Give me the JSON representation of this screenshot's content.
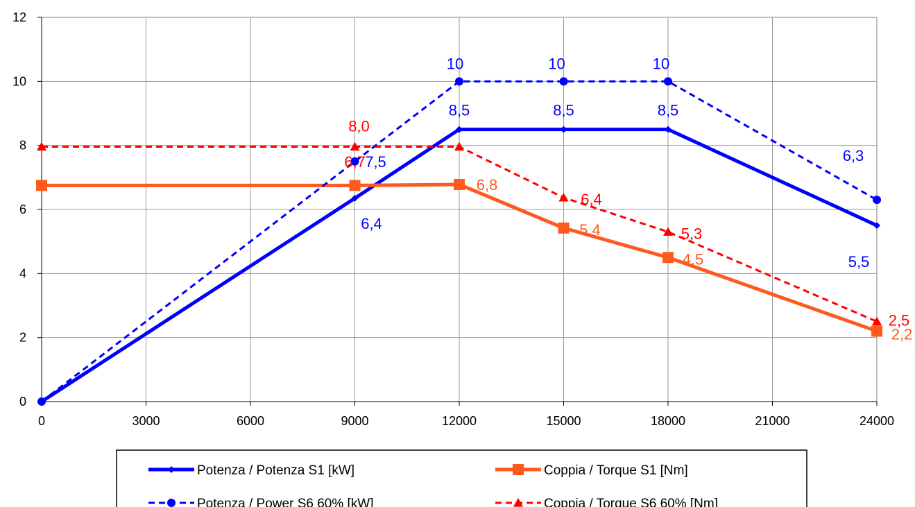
{
  "chart_data": {
    "type": "line",
    "title": "",
    "xlabel": "",
    "ylabel": "",
    "xlim": [
      0,
      24000
    ],
    "ylim": [
      0,
      12
    ],
    "x_ticks": [
      0,
      3000,
      6000,
      9000,
      12000,
      15000,
      18000,
      21000,
      24000
    ],
    "y_ticks": [
      0,
      2,
      4,
      6,
      8,
      10,
      12
    ],
    "grid": true,
    "legend_position": "bottom",
    "series": [
      {
        "name": "Potenza / Potenza S1 [kW]",
        "color": "#0000FF",
        "dash": false,
        "marker": "diamond",
        "points": [
          [
            0,
            0
          ],
          [
            9000,
            6.35
          ],
          [
            12000,
            8.5
          ],
          [
            15000,
            8.5
          ],
          [
            18000,
            8.5
          ],
          [
            24000,
            5.5
          ]
        ],
        "labels": [
          "",
          "6,4",
          "8,5",
          "8,5",
          "8,5",
          "5,5"
        ]
      },
      {
        "name": "Coppia / Torque S1 [Nm]",
        "color": "#FF5A1E",
        "dash": false,
        "marker": "square",
        "points": [
          [
            0,
            6.75
          ],
          [
            9000,
            6.75
          ],
          [
            12000,
            6.78
          ],
          [
            15000,
            5.42
          ],
          [
            18000,
            4.5
          ],
          [
            24000,
            2.2
          ]
        ],
        "labels": [
          "",
          "",
          "6,8",
          "5,4",
          "4,5",
          "2,2"
        ]
      },
      {
        "name": "Potenza / Power S6 60% [kW]",
        "color": "#0000FF",
        "dash": true,
        "marker": "circle",
        "points": [
          [
            0,
            0
          ],
          [
            9000,
            7.5
          ],
          [
            12000,
            10
          ],
          [
            15000,
            10
          ],
          [
            18000,
            10
          ],
          [
            24000,
            6.3
          ]
        ],
        "labels": [
          "",
          "7,5",
          "10",
          "10",
          "10",
          "6,3"
        ]
      },
      {
        "name": "Coppia / Torque S6 60% [Nm]",
        "color": "#FF0000",
        "dash": true,
        "marker": "triangle",
        "points": [
          [
            0,
            7.96
          ],
          [
            9000,
            7.96
          ],
          [
            12000,
            7.96
          ],
          [
            15000,
            6.37
          ],
          [
            18000,
            5.3
          ],
          [
            24000,
            2.5
          ]
        ],
        "labels": [
          "",
          "8,0",
          "",
          "6,4",
          "5,3",
          "2,5"
        ]
      }
    ],
    "extra_label": {
      "text": "6,7",
      "color": "#FF0000"
    }
  }
}
